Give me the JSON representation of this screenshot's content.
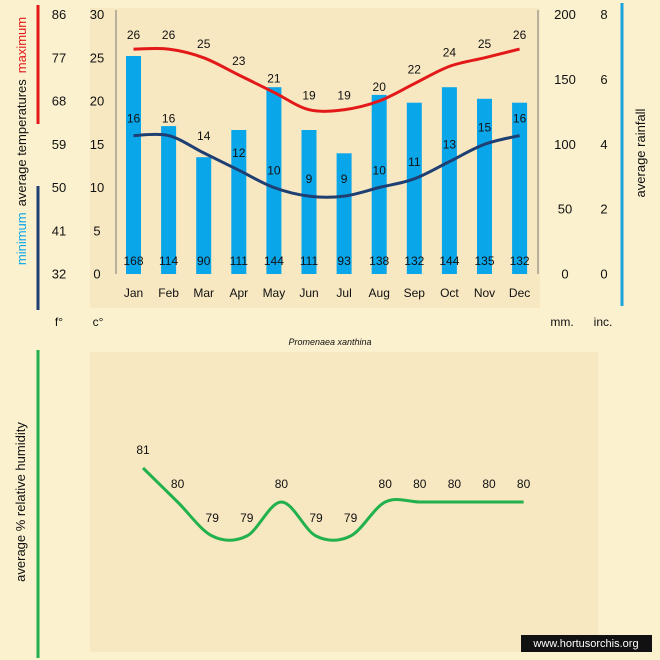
{
  "source_credit": "www.hortusorchis.org",
  "colors": {
    "background": "#fbf1cf",
    "panel": "#f7e8c2",
    "rain_bar": "#0aa6ea",
    "max_line": "#e31919",
    "min_line": "#1f3f73",
    "humidity_line": "#22b14c",
    "rain_axis_bar": "#1aa4dc",
    "humidity_axis_bar": "#22b14c",
    "credit_bg": "#111111"
  },
  "chart_data": [
    {
      "type": "bar+line",
      "title": "Promenaea xanthina",
      "categories": [
        "Jan",
        "Feb",
        "Mar",
        "Apr",
        "May",
        "Jun",
        "Jul",
        "Aug",
        "Sep",
        "Oct",
        "Nov",
        "Dec"
      ],
      "series": [
        {
          "name": "average rainfall (mm)",
          "kind": "bar",
          "values": [
            168,
            114,
            90,
            111,
            144,
            111,
            93,
            138,
            132,
            144,
            135,
            132
          ]
        },
        {
          "name": "average maximum temperature (c°)",
          "kind": "line",
          "values": [
            26,
            26,
            25,
            23,
            21,
            19,
            19,
            20,
            22,
            24,
            25,
            26
          ]
        },
        {
          "name": "average minimum temperature (c°)",
          "kind": "line",
          "values": [
            16,
            16,
            14,
            12,
            10,
            9,
            9,
            10,
            11,
            13,
            15,
            16
          ]
        }
      ],
      "left_axis_c": {
        "label": "c°",
        "ticks": [
          0,
          5,
          10,
          15,
          20,
          25,
          30
        ],
        "ylim": [
          0,
          30
        ]
      },
      "left_axis_f": {
        "label": "f°",
        "ticks": [
          "32",
          "41",
          "50",
          "59",
          "68",
          "77",
          "86"
        ]
      },
      "right_axis_mm": {
        "label": "mm.",
        "ticks": [
          0,
          50,
          100,
          150,
          200
        ],
        "ylim": [
          0,
          200
        ]
      },
      "right_axis_inch": {
        "label": "inc.",
        "ticks": [
          "0",
          "2",
          "4",
          "6",
          "8"
        ]
      },
      "left_title": {
        "minimum": "minimum",
        "middle": "average  temperatures",
        "maximum": "maximum"
      },
      "right_title": "average rainfall"
    },
    {
      "type": "line",
      "ylabel": "average %  relative humidity",
      "categories": [
        "Jan",
        "Feb",
        "Mar",
        "Apr",
        "May",
        "Jun",
        "Jul",
        "Aug",
        "Sep",
        "Oct",
        "Nov",
        "Dec"
      ],
      "values": [
        81,
        80,
        79,
        79,
        80,
        79,
        79,
        80,
        80,
        80,
        80,
        80
      ]
    }
  ]
}
